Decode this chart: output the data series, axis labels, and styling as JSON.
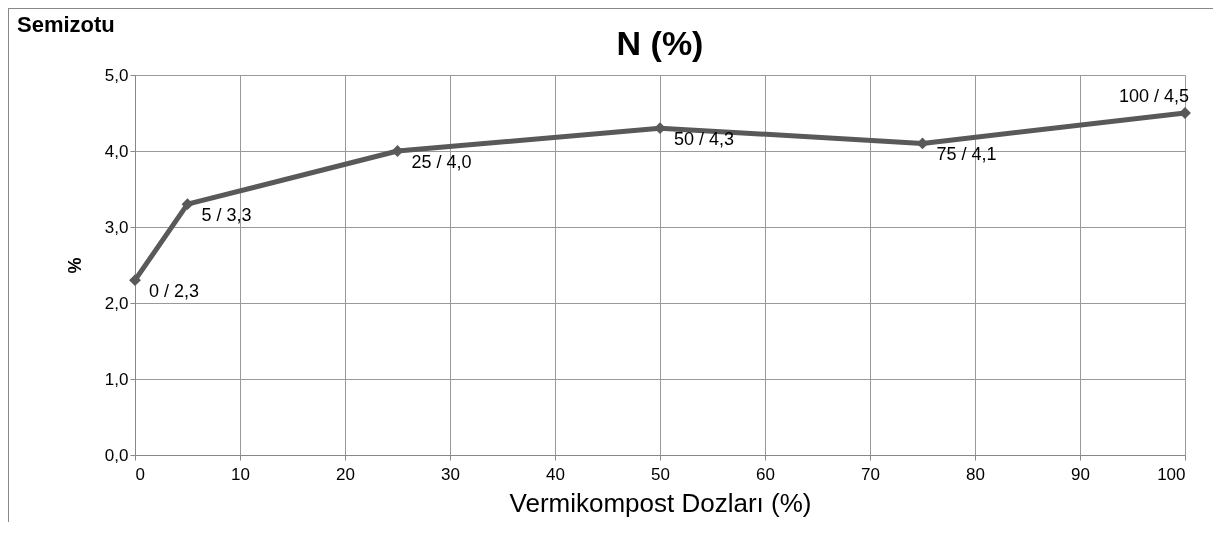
{
  "chart_data": {
    "type": "line",
    "title": "N (%)",
    "xlabel": "Vermikompost Dozları (%)",
    "ylabel": "%",
    "annotations": [
      "Semizotu"
    ],
    "x": [
      0,
      5,
      25,
      50,
      75,
      100
    ],
    "series": [
      {
        "color": "#595959",
        "values": [
          2.3,
          3.3,
          4.0,
          4.3,
          4.1,
          4.5
        ],
        "value_labels": [
          "0 / 2,3",
          "5 / 3,3",
          "25 / 4,0",
          "50 / 4,3",
          "75 / 4,1",
          "100 / 4,5"
        ]
      }
    ],
    "xlim": [
      0,
      100
    ],
    "xticks": [
      0,
      10,
      20,
      30,
      40,
      50,
      60,
      70,
      80,
      90,
      100
    ],
    "ylim": [
      0,
      5
    ],
    "yticks": [
      {
        "value": 0,
        "label": "0,0"
      },
      {
        "value": 1,
        "label": "1,0"
      },
      {
        "value": 2,
        "label": "2,0"
      },
      {
        "value": 3,
        "label": "3,0"
      },
      {
        "value": 4,
        "label": "4,0"
      },
      {
        "value": 5,
        "label": "5,0"
      }
    ],
    "grid": true,
    "marker": "diamond",
    "line_style": "solid"
  }
}
